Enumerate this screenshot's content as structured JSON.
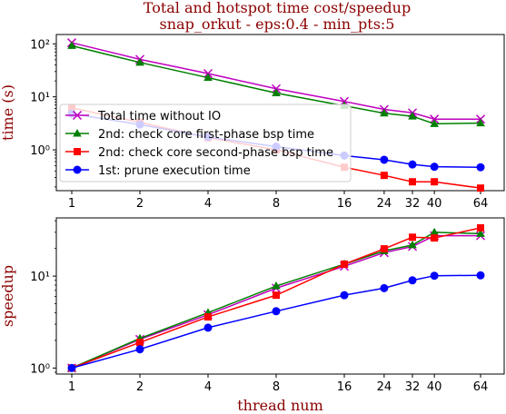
{
  "figure": {
    "title_line1": "Total and hotspot time cost/speedup",
    "title_line2": "snap_orkut - eps:0.4 - min_pts:5"
  },
  "chart_data": [
    {
      "type": "line",
      "ylabel": "time (s)",
      "xlabel": "",
      "x_scale": "log2",
      "y_scale": "log10",
      "x": [
        1,
        2,
        4,
        8,
        16,
        24,
        32,
        40,
        64
      ],
      "x_tick_labels": [
        "1",
        "2",
        "4",
        "8",
        "16",
        "24",
        "32",
        "40",
        "64"
      ],
      "y_ticks": [
        1,
        10,
        100
      ],
      "y_tick_labels": [
        "10⁰",
        "10¹",
        "10²"
      ],
      "ylim": [
        0.17,
        150
      ],
      "legend_position": "center-left",
      "series": [
        {
          "name": "Total time without IO",
          "color": "#bf00bf",
          "marker": "x",
          "values": [
            105,
            51,
            27.5,
            14.2,
            8.2,
            5.8,
            5.0,
            3.8,
            3.8
          ]
        },
        {
          "name": "2nd: check core first-phase bsp time",
          "color": "#008000",
          "marker": "triangle",
          "values": [
            92,
            44.5,
            23,
            11.8,
            6.8,
            4.9,
            4.3,
            3.1,
            3.2
          ]
        },
        {
          "name": "2nd: check core second-phase bsp time",
          "color": "#ff0000",
          "marker": "square",
          "values": [
            6.2,
            3.3,
            1.7,
            1.0,
            0.47,
            0.33,
            0.25,
            0.25,
            0.19
          ]
        },
        {
          "name": "1st: prune execution time",
          "color": "#0000ff",
          "marker": "circle",
          "values": [
            4.8,
            3.0,
            1.75,
            1.15,
            0.78,
            0.65,
            0.53,
            0.48,
            0.47
          ]
        }
      ]
    },
    {
      "type": "line",
      "ylabel": "speedup",
      "xlabel": "thread num",
      "x_scale": "log2",
      "y_scale": "log10",
      "x": [
        1,
        2,
        4,
        8,
        16,
        24,
        32,
        40,
        64
      ],
      "x_tick_labels": [
        "1",
        "2",
        "4",
        "8",
        "16",
        "24",
        "32",
        "40",
        "64"
      ],
      "y_ticks": [
        1,
        10
      ],
      "y_tick_labels": [
        "10⁰",
        "10¹"
      ],
      "ylim": [
        0.86,
        43
      ],
      "series": [
        {
          "name": "Total time without IO",
          "color": "#bf00bf",
          "marker": "x",
          "values": [
            1,
            2.05,
            3.8,
            7.4,
            12.8,
            18,
            21,
            27.5,
            27.5
          ]
        },
        {
          "name": "2nd: check core first-phase bsp time",
          "color": "#008000",
          "marker": "triangle",
          "values": [
            1,
            2.1,
            4.0,
            7.8,
            13.5,
            18.8,
            21.8,
            30,
            29
          ]
        },
        {
          "name": "2nd: check core second-phase bsp time",
          "color": "#ff0000",
          "marker": "square",
          "values": [
            1,
            1.9,
            3.6,
            6.2,
            13.5,
            19.8,
            26.5,
            26,
            33.5
          ]
        },
        {
          "name": "1st: prune execution time",
          "color": "#0000ff",
          "marker": "circle",
          "values": [
            1,
            1.6,
            2.75,
            4.15,
            6.2,
            7.4,
            9.0,
            10.1,
            10.2
          ]
        }
      ]
    }
  ]
}
